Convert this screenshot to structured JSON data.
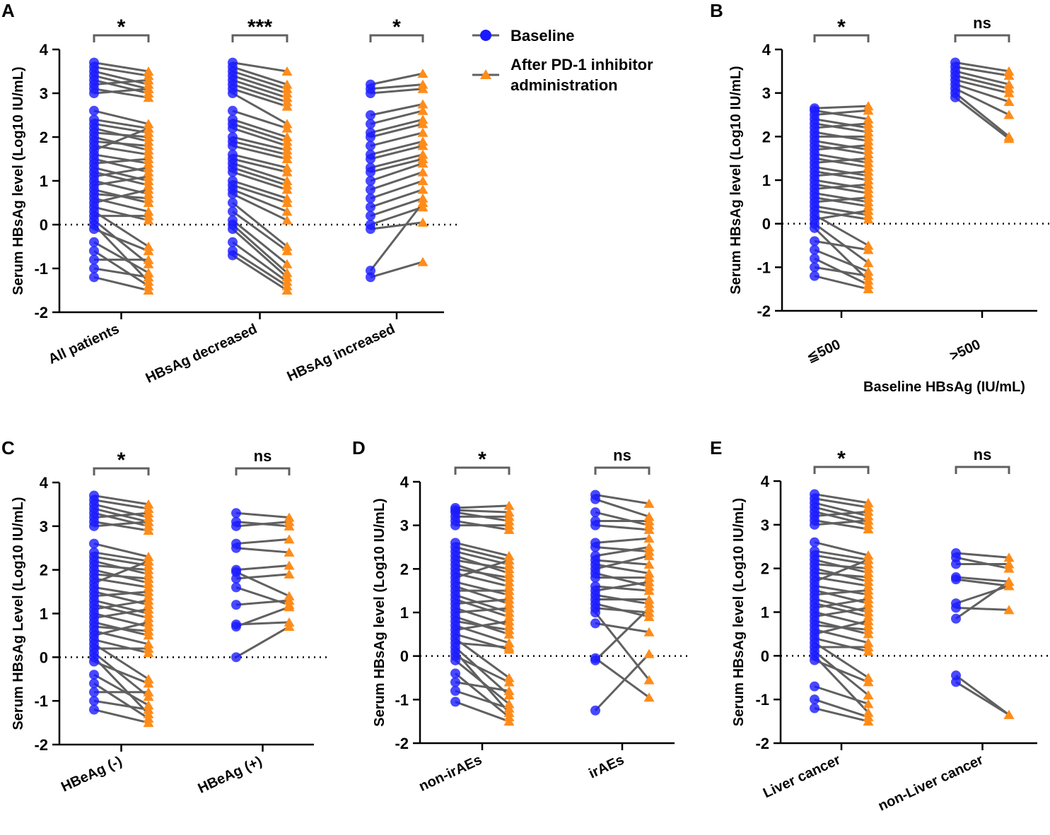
{
  "colors": {
    "baseline": "#1a1aff",
    "after": "#ff8c1a",
    "line": "#606060",
    "bracket": "#606060"
  },
  "legend": [
    {
      "label": "Baseline",
      "marker": "circle"
    },
    {
      "label": "After PD-1 inhibitor",
      "label2": "administration",
      "marker": "triangle"
    }
  ],
  "chart_data": [
    {
      "panel": "A",
      "type": "paired-scatter",
      "ylabel": "Serum HBsAg level (Log10 IU/mL)",
      "xlabel": "",
      "ylim": [
        -2,
        4
      ],
      "yticks": [
        "-2",
        "-1",
        "0",
        "1",
        "2",
        "3",
        "4"
      ],
      "categories": [
        "All patients",
        "HBsAg decreased",
        "HBsAg increased"
      ],
      "significance": [
        "*",
        "***",
        "*"
      ],
      "series": [
        {
          "name": "All patients",
          "baseline": [
            3.7,
            3.6,
            3.5,
            3.4,
            3.3,
            3.2,
            3.1,
            3.0,
            2.6,
            2.4,
            2.3,
            2.2,
            2.1,
            2.0,
            1.9,
            1.8,
            1.7,
            1.6,
            1.5,
            1.4,
            1.3,
            1.2,
            1.1,
            1.0,
            0.9,
            0.8,
            0.7,
            0.6,
            0.5,
            0.4,
            0.3,
            0.2,
            0.1,
            0.0,
            -0.1,
            -0.4,
            -0.6,
            -0.8,
            -1.0,
            -1.2
          ],
          "after": [
            3.5,
            3.4,
            3.2,
            3.1,
            3.0,
            3.3,
            2.9,
            3.1,
            2.3,
            2.2,
            2.1,
            1.9,
            2.0,
            1.7,
            1.8,
            1.6,
            2.2,
            1.4,
            1.2,
            1.5,
            1.0,
            0.9,
            1.3,
            0.7,
            1.1,
            0.5,
            0.6,
            0.3,
            0.8,
            0.1,
            -0.5,
            0.2,
            -0.9,
            -1.3,
            -0.6,
            -1.1,
            -1.4,
            -0.8,
            -1.2,
            -1.5
          ]
        },
        {
          "name": "HBsAg decreased",
          "baseline": [
            3.7,
            3.6,
            3.5,
            3.4,
            3.3,
            3.2,
            3.1,
            3.0,
            2.6,
            2.4,
            2.3,
            2.2,
            2.0,
            1.9,
            1.8,
            1.6,
            1.5,
            1.4,
            1.3,
            1.2,
            1.0,
            0.9,
            0.8,
            0.7,
            0.5,
            0.3,
            0.1,
            0.0,
            -0.1,
            -0.4,
            -0.6,
            -0.7
          ],
          "after": [
            3.5,
            3.2,
            3.1,
            3.0,
            2.9,
            2.8,
            2.7,
            2.3,
            2.2,
            2.0,
            1.9,
            1.8,
            1.7,
            1.6,
            1.5,
            1.3,
            1.2,
            1.0,
            0.9,
            0.8,
            0.6,
            0.5,
            0.3,
            0.1,
            -0.5,
            -0.6,
            -0.9,
            -1.1,
            -1.2,
            -1.3,
            -1.4,
            -1.5
          ]
        },
        {
          "name": "HBsAg increased",
          "baseline": [
            3.2,
            3.1,
            3.0,
            2.5,
            2.3,
            2.1,
            2.0,
            1.8,
            1.6,
            1.5,
            1.3,
            1.2,
            1.0,
            0.8,
            0.6,
            0.4,
            0.2,
            0.0,
            -0.1,
            -1.05,
            -1.2
          ],
          "after": [
            3.45,
            3.2,
            3.1,
            2.75,
            2.6,
            2.4,
            2.3,
            2.1,
            1.9,
            1.8,
            1.6,
            1.5,
            1.4,
            1.2,
            1.0,
            0.8,
            0.6,
            0.4,
            0.05,
            0.5,
            -0.85
          ]
        }
      ]
    },
    {
      "panel": "B",
      "type": "paired-scatter",
      "ylabel": "Serum HBsAg level (Log10 IU/mL)",
      "xlabel": "Baseline HBsAg (IU/mL)",
      "ylim": [
        -2,
        4
      ],
      "yticks": [
        "-2",
        "-1",
        "0",
        "1",
        "2",
        "3",
        "4"
      ],
      "categories": [
        "≦500",
        ">500"
      ],
      "significance": [
        "*",
        "ns"
      ],
      "series": [
        {
          "name": "≦500",
          "baseline": [
            2.65,
            2.6,
            2.5,
            2.4,
            2.3,
            2.2,
            2.1,
            2.0,
            1.9,
            1.8,
            1.7,
            1.6,
            1.5,
            1.4,
            1.3,
            1.2,
            1.1,
            1.0,
            0.9,
            0.8,
            0.7,
            0.6,
            0.5,
            0.4,
            0.3,
            0.2,
            0.1,
            0.0,
            -0.1,
            -0.4,
            -0.6,
            -0.8,
            -1.0,
            -1.2
          ],
          "after": [
            2.7,
            2.4,
            2.6,
            2.2,
            2.1,
            2.3,
            1.9,
            2.0,
            1.7,
            1.6,
            1.8,
            1.4,
            1.3,
            1.5,
            1.1,
            1.0,
            1.2,
            0.8,
            0.7,
            0.9,
            0.5,
            0.4,
            0.6,
            0.2,
            0.1,
            -0.5,
            0.3,
            -0.9,
            -1.3,
            -0.6,
            -1.1,
            -1.4,
            -1.2,
            -1.5
          ]
        },
        {
          "name": ">500",
          "baseline": [
            3.7,
            3.6,
            3.5,
            3.4,
            3.3,
            3.2,
            3.1,
            3.0,
            2.9
          ],
          "after": [
            3.5,
            3.4,
            3.2,
            3.1,
            3.0,
            2.8,
            2.5,
            2.0,
            1.95
          ]
        }
      ]
    },
    {
      "panel": "C",
      "type": "paired-scatter",
      "ylabel": "Serum HBsAg Level (Log10 IU/mL)",
      "xlabel": "",
      "ylim": [
        -2,
        4
      ],
      "yticks": [
        "-2",
        "-1",
        "0",
        "1",
        "2",
        "3",
        "4"
      ],
      "categories": [
        "HBeAg (-)",
        "HBeAg (+)"
      ],
      "significance": [
        "*",
        "ns"
      ],
      "series": [
        {
          "name": "HBeAg (-)",
          "baseline": [
            3.7,
            3.6,
            3.5,
            3.4,
            3.3,
            3.2,
            3.1,
            3.0,
            2.6,
            2.4,
            2.3,
            2.2,
            2.1,
            2.0,
            1.9,
            1.8,
            1.7,
            1.6,
            1.5,
            1.4,
            1.3,
            1.2,
            1.1,
            1.0,
            0.9,
            0.8,
            0.7,
            0.6,
            0.5,
            0.4,
            0.3,
            0.2,
            0.1,
            0.0,
            -0.1,
            -0.4,
            -0.6,
            -0.8,
            -1.0,
            -1.2
          ],
          "after": [
            3.5,
            3.4,
            3.2,
            3.1,
            3.0,
            3.3,
            2.9,
            3.1,
            2.3,
            2.2,
            2.1,
            1.9,
            2.0,
            1.7,
            1.8,
            1.6,
            2.2,
            1.4,
            1.2,
            1.5,
            1.0,
            0.9,
            1.3,
            0.7,
            1.1,
            0.5,
            0.6,
            0.3,
            0.8,
            0.1,
            -0.5,
            0.2,
            -0.9,
            -1.3,
            -0.6,
            -1.1,
            -1.4,
            -0.8,
            -1.2,
            -1.5
          ]
        },
        {
          "name": "HBeAg (+)",
          "baseline": [
            3.3,
            3.1,
            3.0,
            2.6,
            2.5,
            2.0,
            1.95,
            1.8,
            1.6,
            1.2,
            0.75,
            0.7,
            0.0
          ],
          "after": [
            3.2,
            3.0,
            3.1,
            2.7,
            2.4,
            2.1,
            1.4,
            1.9,
            1.2,
            1.3,
            0.8,
            1.15,
            0.7
          ]
        }
      ]
    },
    {
      "panel": "D",
      "type": "paired-scatter",
      "ylabel": "Serum HBsAg level (Log10 IU/mL)",
      "xlabel": "",
      "ylim": [
        -2,
        4
      ],
      "yticks": [
        "-2",
        "-1",
        "0",
        "1",
        "2",
        "3",
        "4"
      ],
      "categories": [
        "non-irAEs",
        "irAEs"
      ],
      "significance": [
        "*",
        "ns"
      ],
      "series": [
        {
          "name": "non-irAEs",
          "baseline": [
            3.4,
            3.35,
            3.3,
            3.2,
            3.1,
            3.0,
            2.6,
            2.5,
            2.4,
            2.3,
            2.2,
            2.1,
            2.0,
            1.9,
            1.8,
            1.7,
            1.6,
            1.5,
            1.4,
            1.3,
            1.2,
            1.1,
            1.0,
            0.9,
            0.8,
            0.7,
            0.6,
            0.5,
            0.4,
            0.3,
            0.2,
            0.1,
            0.0,
            -0.1,
            -0.4,
            -0.6,
            -0.8,
            -1.05
          ],
          "after": [
            3.45,
            3.3,
            3.1,
            3.2,
            2.9,
            3.0,
            2.3,
            2.2,
            2.1,
            1.9,
            2.0,
            1.7,
            1.8,
            1.6,
            2.2,
            1.4,
            1.2,
            1.5,
            1.0,
            0.9,
            1.3,
            0.7,
            1.1,
            0.5,
            0.6,
            0.3,
            0.8,
            0.15,
            -0.5,
            0.2,
            -0.9,
            -1.3,
            -0.6,
            -1.1,
            -1.4,
            -0.8,
            -1.2,
            -1.5
          ]
        },
        {
          "name": "irAEs",
          "baseline": [
            3.7,
            3.6,
            3.3,
            3.1,
            3.0,
            2.6,
            2.5,
            2.3,
            2.2,
            2.1,
            2.0,
            1.9,
            1.8,
            1.6,
            1.5,
            1.4,
            1.3,
            1.2,
            1.1,
            1.0,
            0.75,
            -0.05,
            -0.1,
            -1.25
          ],
          "after": [
            3.5,
            3.2,
            3.0,
            3.1,
            2.9,
            2.7,
            2.4,
            2.5,
            2.1,
            1.9,
            2.3,
            1.6,
            1.8,
            1.5,
            1.7,
            1.2,
            1.3,
            0.9,
            1.0,
            -0.55,
            0.55,
            -0.95,
            1.1,
            0.05
          ]
        }
      ]
    },
    {
      "panel": "E",
      "type": "paired-scatter",
      "ylabel": "Serum HBsAg level (Log10 IU/mL)",
      "xlabel": "",
      "ylim": [
        -2,
        4
      ],
      "yticks": [
        "-2",
        "-1",
        "0",
        "1",
        "2",
        "3",
        "4"
      ],
      "categories": [
        "Liver cancer",
        "non-Liver cancer"
      ],
      "significance": [
        "*",
        "ns"
      ],
      "series": [
        {
          "name": "Liver cancer",
          "baseline": [
            3.7,
            3.6,
            3.5,
            3.4,
            3.3,
            3.2,
            3.1,
            3.0,
            2.6,
            2.4,
            2.3,
            2.2,
            2.1,
            2.0,
            1.9,
            1.8,
            1.7,
            1.6,
            1.5,
            1.4,
            1.3,
            1.2,
            1.1,
            1.0,
            0.9,
            0.8,
            0.7,
            0.6,
            0.5,
            0.4,
            0.3,
            0.2,
            0.1,
            0.0,
            -0.1,
            -0.7,
            -1.0,
            -1.2
          ],
          "after": [
            3.5,
            3.4,
            3.2,
            3.1,
            3.0,
            3.3,
            2.9,
            3.1,
            2.3,
            2.2,
            2.1,
            1.9,
            2.0,
            1.7,
            1.8,
            1.6,
            2.2,
            1.4,
            1.2,
            1.5,
            1.0,
            0.9,
            1.3,
            0.7,
            1.1,
            0.5,
            0.6,
            0.3,
            0.8,
            0.1,
            -0.5,
            0.2,
            -0.9,
            -1.3,
            -0.6,
            -1.1,
            -1.4,
            -1.5
          ]
        },
        {
          "name": "non-Liver cancer",
          "baseline": [
            2.35,
            2.25,
            2.1,
            1.8,
            1.75,
            1.2,
            1.1,
            0.85,
            -0.45,
            -0.6
          ],
          "after": [
            2.25,
            2.0,
            2.1,
            1.7,
            1.6,
            1.6,
            1.05,
            1.7,
            -1.35,
            -1.35
          ]
        }
      ]
    }
  ]
}
